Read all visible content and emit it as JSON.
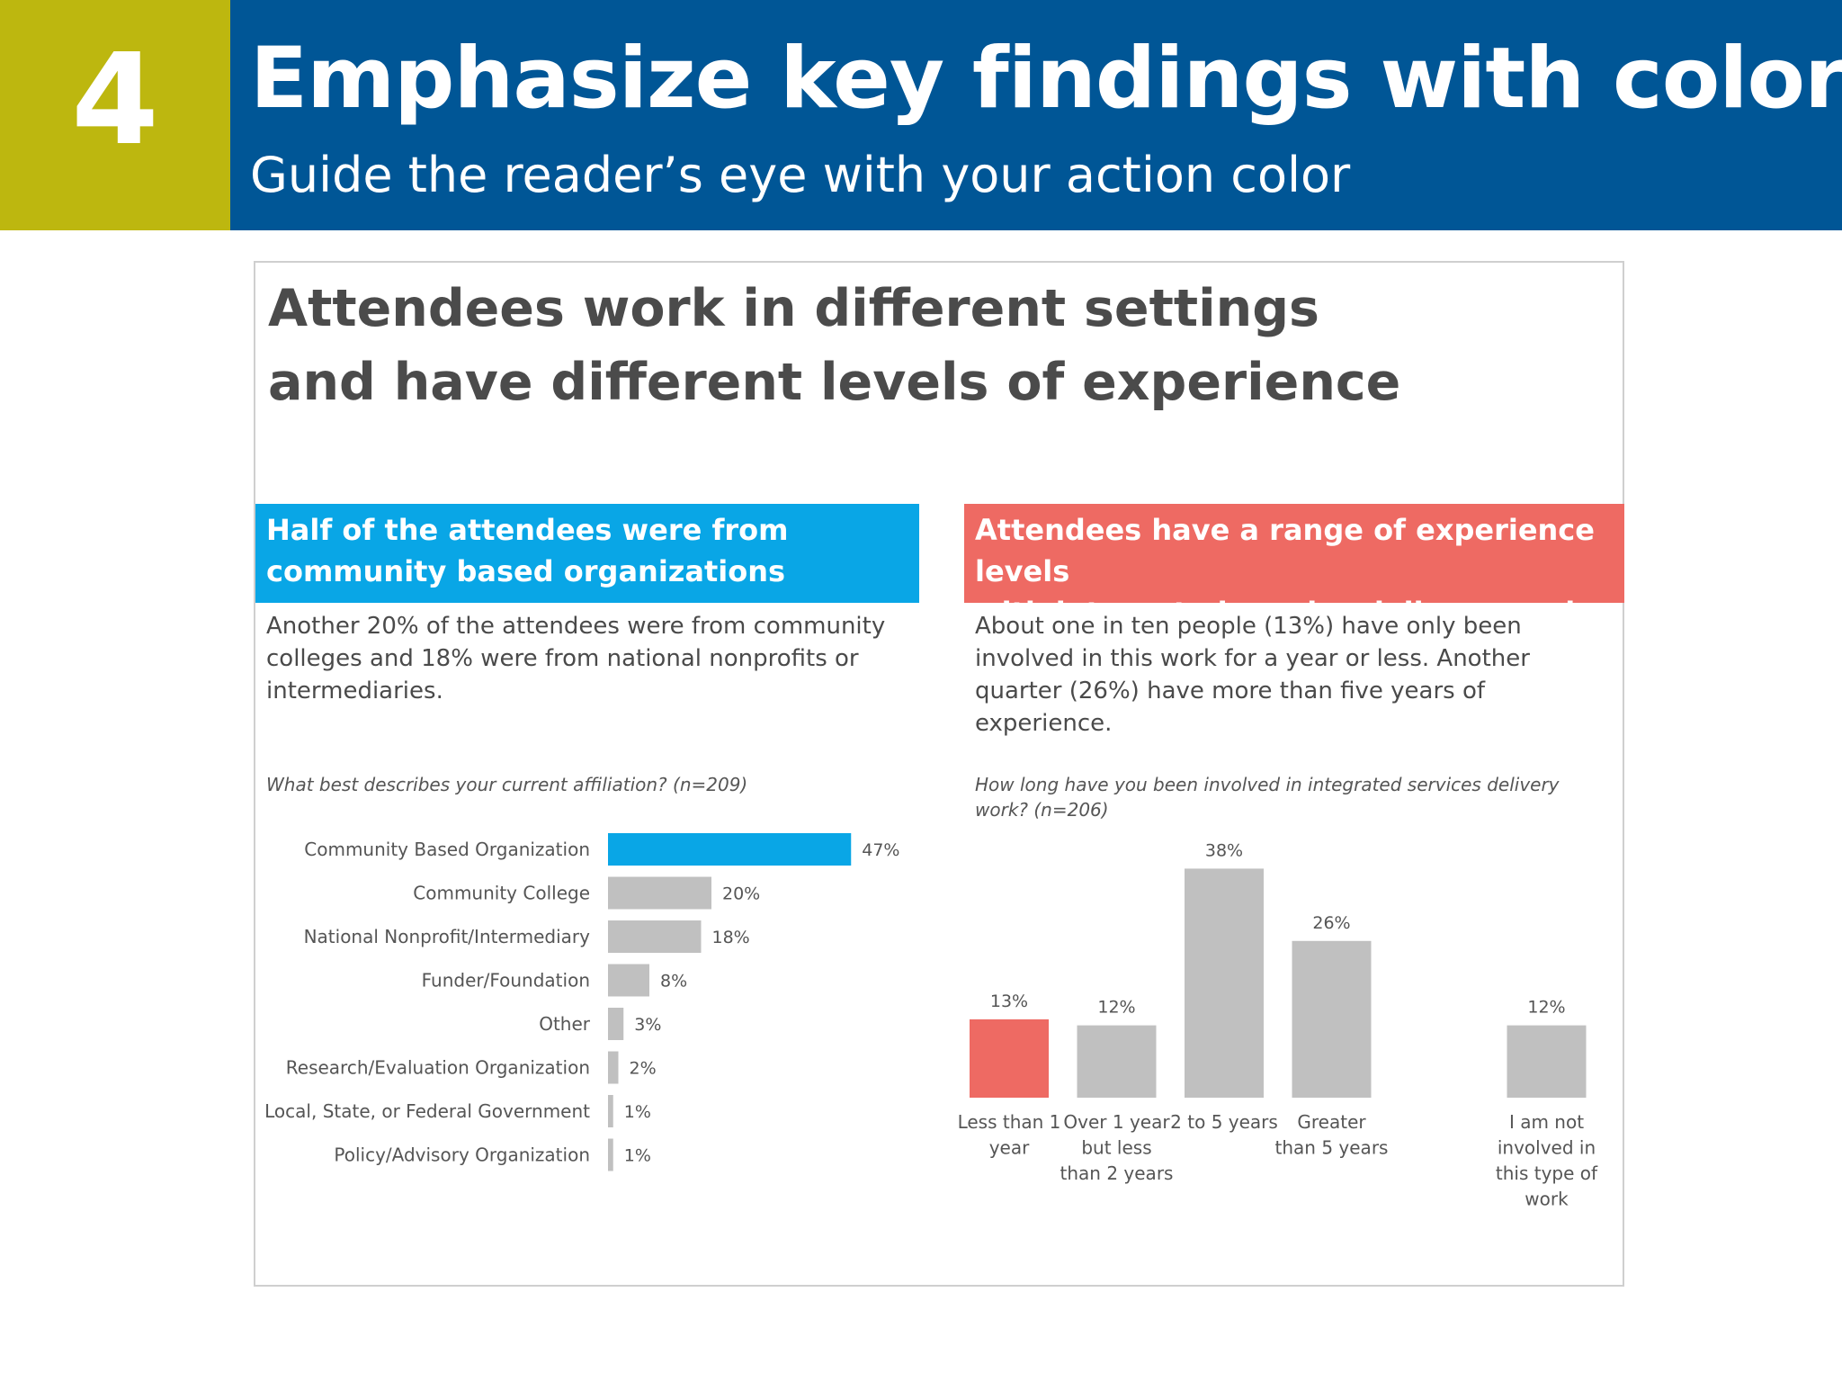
{
  "header": {
    "number": "4",
    "title": "Emphasize key findings with color",
    "subtitle": "Guide the reader’s eye with your action color"
  },
  "card": {
    "title_line1": "Attendees work in different settings",
    "title_line2": "and have different levels of experience"
  },
  "left_panel": {
    "banner_line1": "Half of the attendees were from",
    "banner_line2": "community based organizations",
    "description": "Another 20% of the attendees were from community colleges and 18% were from national nonprofits or intermediaries.",
    "question": "What best describes your current affiliation? (n=209)"
  },
  "right_panel": {
    "banner_line1": "Attendees have a range of experience levels",
    "banner_line2": "with integrated service delivery work",
    "description": "About one in ten people (13%) have only been involved in this work for a year or less. Another quarter (26%) have more than five years of experience.",
    "question": "How long have you been involved in integrated services delivery work? (n=206)"
  },
  "colors": {
    "header_bg": "#005696",
    "number_bg": "#bdb70f",
    "left_action": "#09a6e6",
    "right_action": "#ee6a63",
    "bar_default": "#c0c0c0"
  },
  "chart_data": [
    {
      "type": "bar",
      "orientation": "horizontal",
      "title": "What best describes your current affiliation? (n=209)",
      "categories": [
        "Community Based Organization",
        "Community College",
        "National Nonprofit/Intermediary",
        "Funder/Foundation",
        "Other",
        "Research/Evaluation Organization",
        "Local, State, or Federal Government",
        "Policy/Advisory Organization"
      ],
      "values": [
        47,
        20,
        18,
        8,
        3,
        2,
        1,
        1
      ],
      "value_labels": [
        "47%",
        "20%",
        "18%",
        "8%",
        "3%",
        "2%",
        "1%",
        "1%"
      ],
      "highlight_index": 0,
      "xlim": [
        0,
        100
      ],
      "grid": false
    },
    {
      "type": "bar",
      "orientation": "vertical",
      "title": "How long have you been involved in integrated services delivery work? (n=206)",
      "categories": [
        [
          "Less than 1",
          "year"
        ],
        [
          "Over 1 year",
          "but less",
          "than 2 years"
        ],
        [
          "2 to 5 years"
        ],
        [
          "Greater",
          "than 5 years"
        ],
        [
          "I am not",
          "involved in",
          "this type of",
          "work"
        ]
      ],
      "slots": [
        0,
        1,
        2,
        3,
        5
      ],
      "values": [
        13,
        12,
        38,
        26,
        12
      ],
      "value_labels": [
        "13%",
        "12%",
        "38%",
        "26%",
        "12%"
      ],
      "highlight_index": 0,
      "ylim": [
        0,
        40
      ],
      "grid": false
    }
  ]
}
